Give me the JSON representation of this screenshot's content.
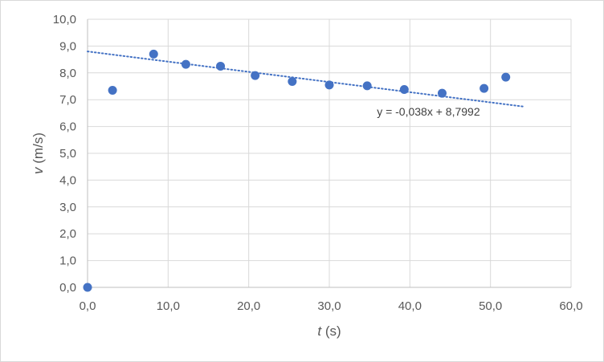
{
  "chart_data": {
    "type": "scatter",
    "xlabel_var": "t",
    "xlabel_unit": " (s)",
    "ylabel_var": "v",
    "ylabel_unit": " (m/s)",
    "xlim": [
      0,
      60
    ],
    "ylim": [
      0,
      10
    ],
    "x_ticks": [
      "0,0",
      "10,0",
      "20,0",
      "30,0",
      "40,0",
      "50,0",
      "60,0"
    ],
    "y_ticks": [
      "0,0",
      "1,0",
      "2,0",
      "3,0",
      "4,0",
      "5,0",
      "6,0",
      "7,0",
      "8,0",
      "9,0",
      "10,0"
    ],
    "grid": true,
    "marker_color": "#4472c4",
    "series": [
      {
        "points": [
          {
            "x": 0.0,
            "y": 0.0
          },
          {
            "x": 3.1,
            "y": 7.35
          },
          {
            "x": 8.2,
            "y": 8.7
          },
          {
            "x": 12.2,
            "y": 8.32
          },
          {
            "x": 16.5,
            "y": 8.25
          },
          {
            "x": 20.8,
            "y": 7.9
          },
          {
            "x": 25.4,
            "y": 7.68
          },
          {
            "x": 30.0,
            "y": 7.55
          },
          {
            "x": 34.7,
            "y": 7.52
          },
          {
            "x": 39.3,
            "y": 7.38
          },
          {
            "x": 44.0,
            "y": 7.24
          },
          {
            "x": 49.2,
            "y": 7.42
          },
          {
            "x": 51.9,
            "y": 7.84
          }
        ]
      }
    ],
    "trendline": {
      "kind": "linear",
      "slope": -0.038,
      "intercept": 8.7992,
      "x_range": [
        0,
        54.2
      ],
      "equation_label": "y = -0,038x + 8,7992",
      "label_anchor": {
        "x": 42.3,
        "y": 6.4
      }
    }
  }
}
